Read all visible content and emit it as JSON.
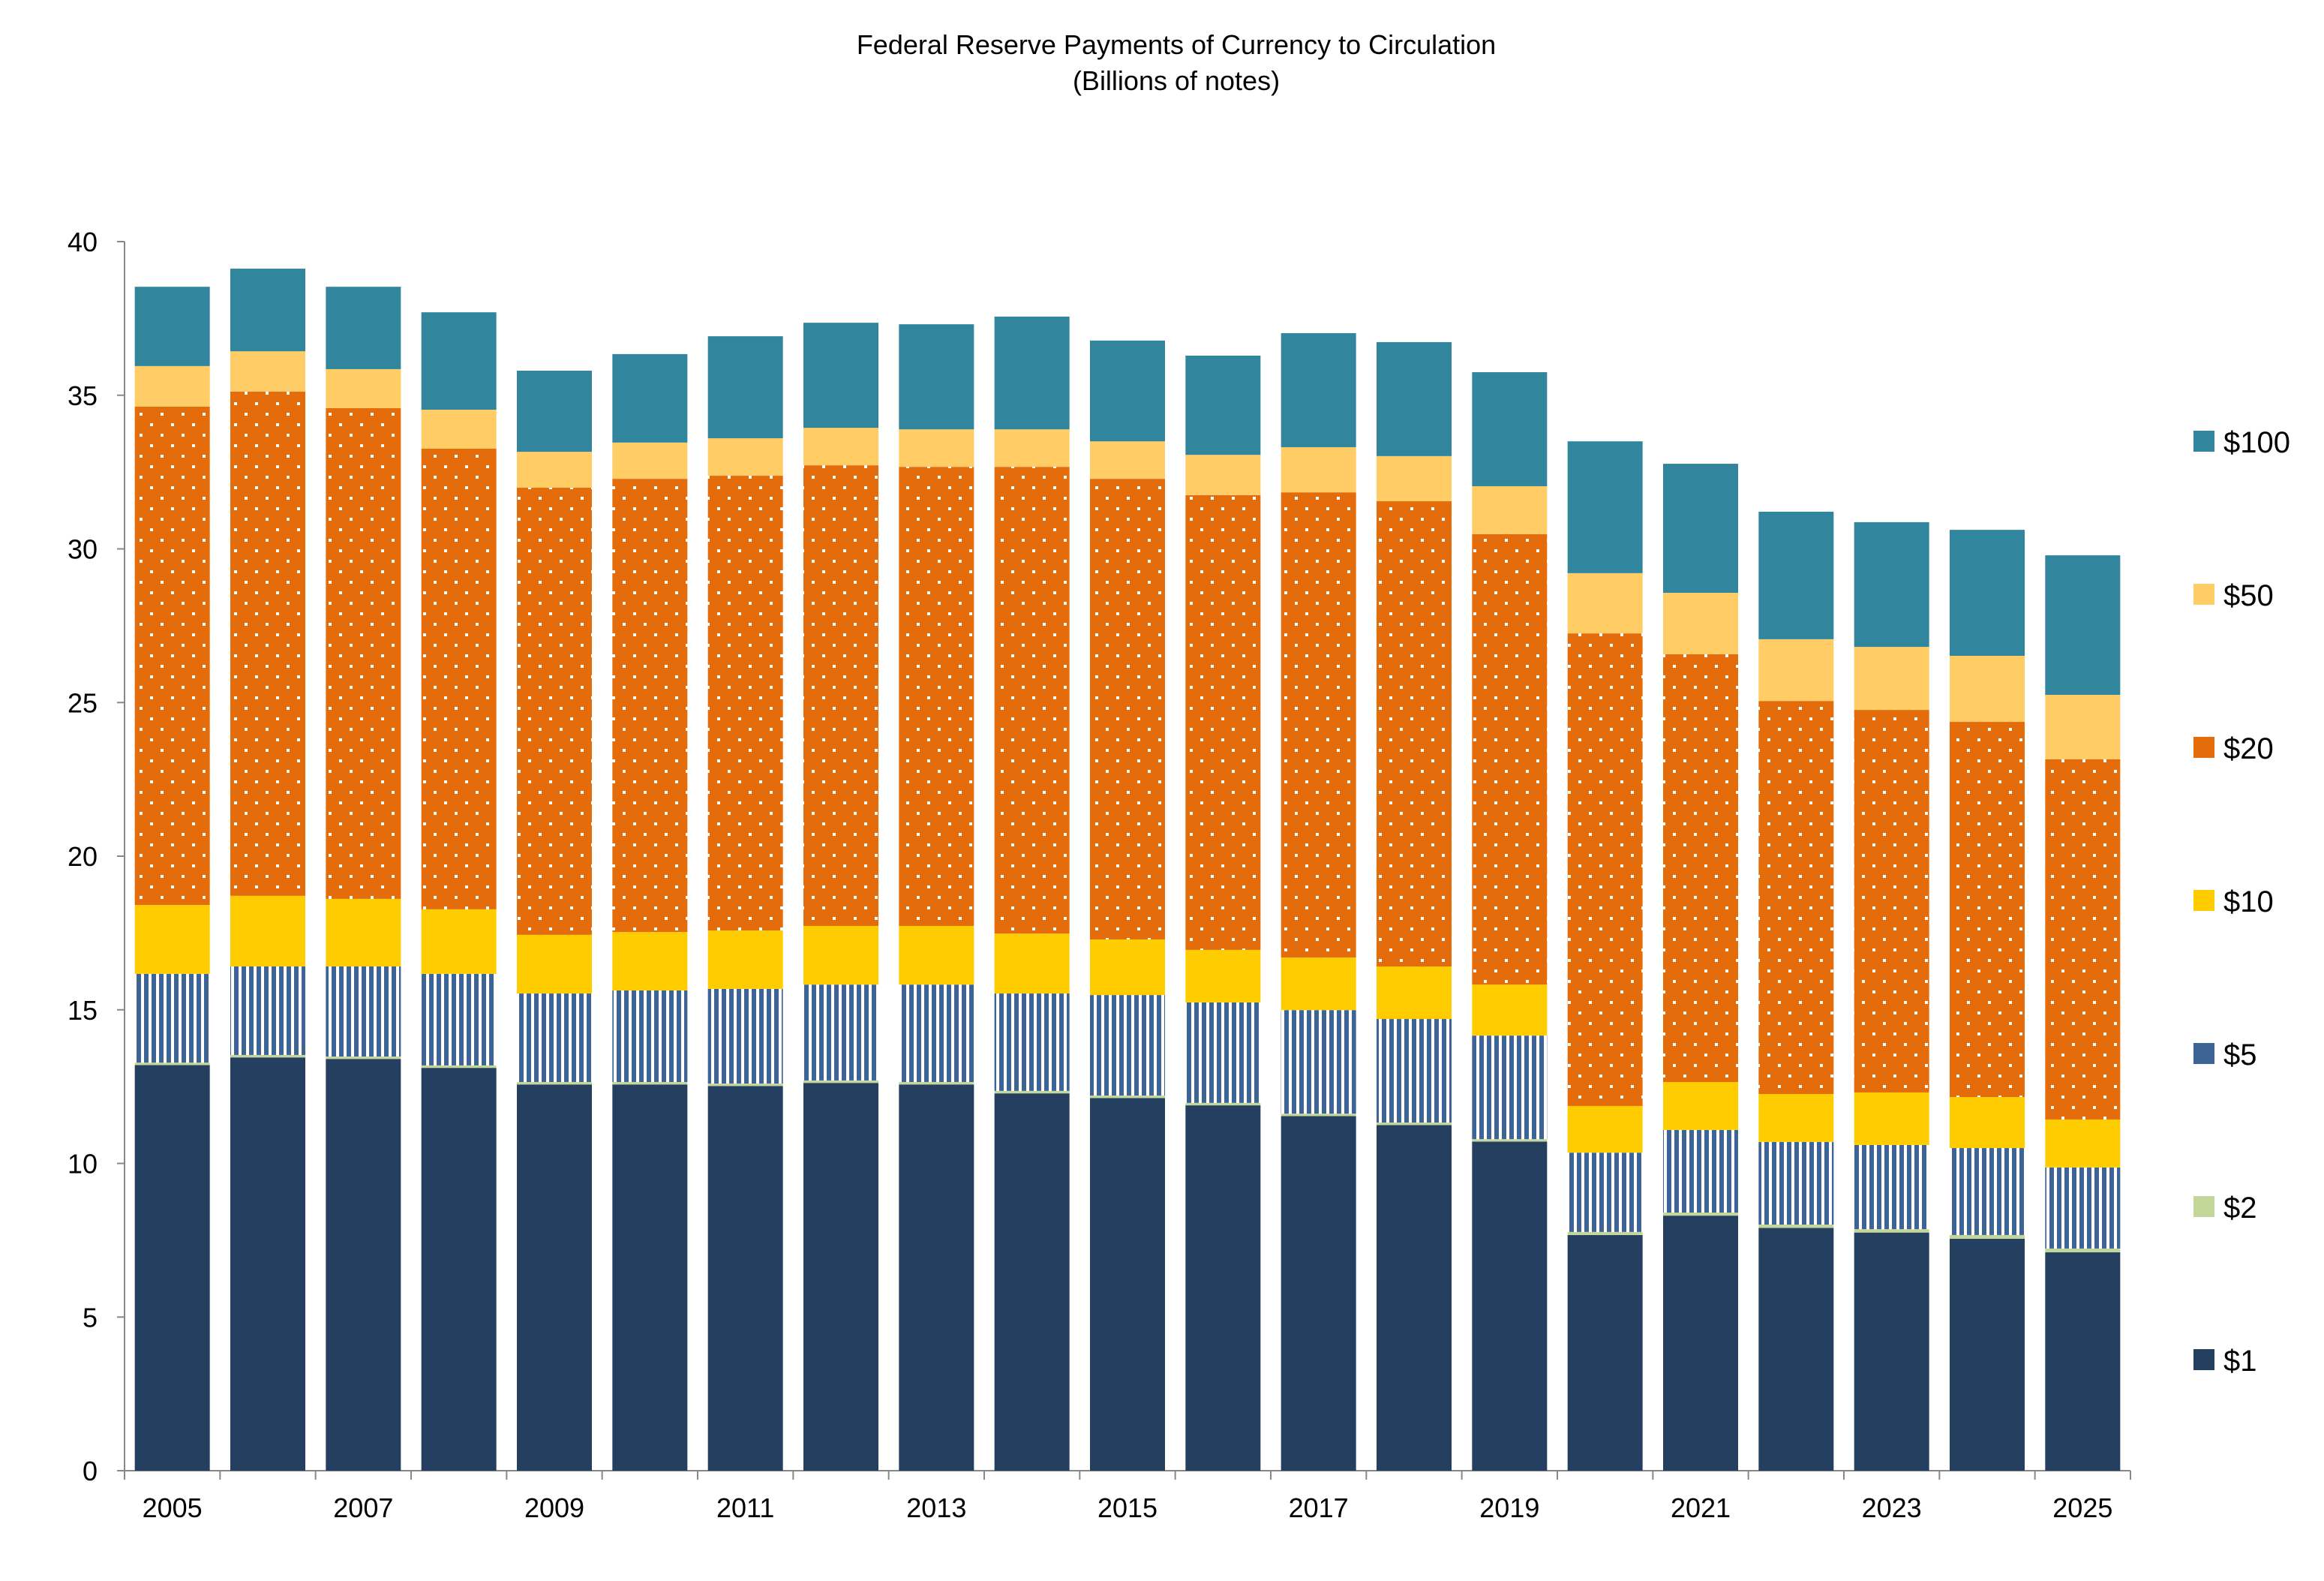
{
  "chart_data": {
    "type": "bar",
    "stacked": true,
    "title": "Federal Reserve Payments of Currency to Circulation",
    "subtitle": "(Billions of notes)",
    "xlabel": "",
    "ylabel": "",
    "ylim": [
      0,
      40
    ],
    "yticks": [
      0,
      5,
      10,
      15,
      20,
      25,
      30,
      35,
      40
    ],
    "grid": false,
    "legend_position": "right",
    "categories": [
      "2005",
      "2006",
      "2007",
      "2008",
      "2009",
      "2010",
      "2011",
      "2012",
      "2013",
      "2014",
      "2015",
      "2016",
      "2017",
      "2018",
      "2019",
      "2020",
      "2021",
      "2022",
      "2023",
      "2024",
      "2025"
    ],
    "xtick_labels": [
      "2005",
      "",
      "2007",
      "",
      "2009",
      "",
      "2011",
      "",
      "2013",
      "",
      "2015",
      "",
      "2017",
      "",
      "2019",
      "",
      "2021",
      "",
      "2023",
      "",
      "2025"
    ],
    "series": [
      {
        "name": "$1",
        "color": "#243F60",
        "pattern": "solid",
        "values": [
          13.2,
          13.45,
          13.4,
          13.11,
          12.57,
          12.57,
          12.52,
          12.62,
          12.57,
          12.28,
          12.13,
          11.89,
          11.54,
          11.25,
          10.71,
          7.67,
          8.3,
          7.9,
          7.75,
          7.55,
          7.11
        ]
      },
      {
        "name": "$2",
        "color": "#C4D79B",
        "pattern": "solid",
        "values": [
          0.08,
          0.08,
          0.08,
          0.08,
          0.08,
          0.08,
          0.08,
          0.08,
          0.08,
          0.08,
          0.08,
          0.08,
          0.08,
          0.08,
          0.08,
          0.1,
          0.1,
          0.11,
          0.11,
          0.12,
          0.12
        ]
      },
      {
        "name": "$5",
        "color": "#3E6496",
        "pattern": "vertical-stripes",
        "values": [
          2.89,
          2.88,
          2.93,
          2.98,
          2.88,
          2.98,
          3.08,
          3.12,
          3.17,
          3.17,
          3.27,
          3.27,
          3.37,
          3.37,
          3.37,
          2.58,
          2.69,
          2.69,
          2.74,
          2.83,
          2.64
        ]
      },
      {
        "name": "$10",
        "color": "#FFCC00",
        "pattern": "solid",
        "values": [
          2.24,
          2.3,
          2.2,
          2.1,
          1.91,
          1.9,
          1.9,
          1.91,
          1.91,
          1.95,
          1.81,
          1.71,
          1.71,
          1.71,
          1.66,
          1.52,
          1.56,
          1.56,
          1.71,
          1.66,
          1.56
        ]
      },
      {
        "name": "$20",
        "color": "#E46C0A",
        "pattern": "dots",
        "values": [
          16.22,
          16.41,
          15.97,
          14.99,
          14.55,
          14.75,
          14.8,
          14.99,
          14.94,
          15.19,
          14.99,
          14.8,
          15.14,
          15.14,
          14.66,
          15.38,
          13.92,
          12.79,
          12.45,
          12.21,
          11.72
        ]
      },
      {
        "name": "$50",
        "color": "#FFCC66",
        "pattern": "solid",
        "values": [
          1.32,
          1.31,
          1.27,
          1.27,
          1.17,
          1.18,
          1.22,
          1.22,
          1.22,
          1.22,
          1.22,
          1.31,
          1.47,
          1.47,
          1.56,
          1.96,
          2.0,
          2.01,
          2.05,
          2.15,
          2.1
        ]
      },
      {
        "name": "$100",
        "color": "#31859C",
        "pattern": "solid",
        "values": [
          2.58,
          2.69,
          2.68,
          3.17,
          2.64,
          2.88,
          3.32,
          3.42,
          3.42,
          3.67,
          3.28,
          3.23,
          3.71,
          3.71,
          3.71,
          4.29,
          4.2,
          4.15,
          4.06,
          4.1,
          4.54
        ]
      }
    ]
  }
}
